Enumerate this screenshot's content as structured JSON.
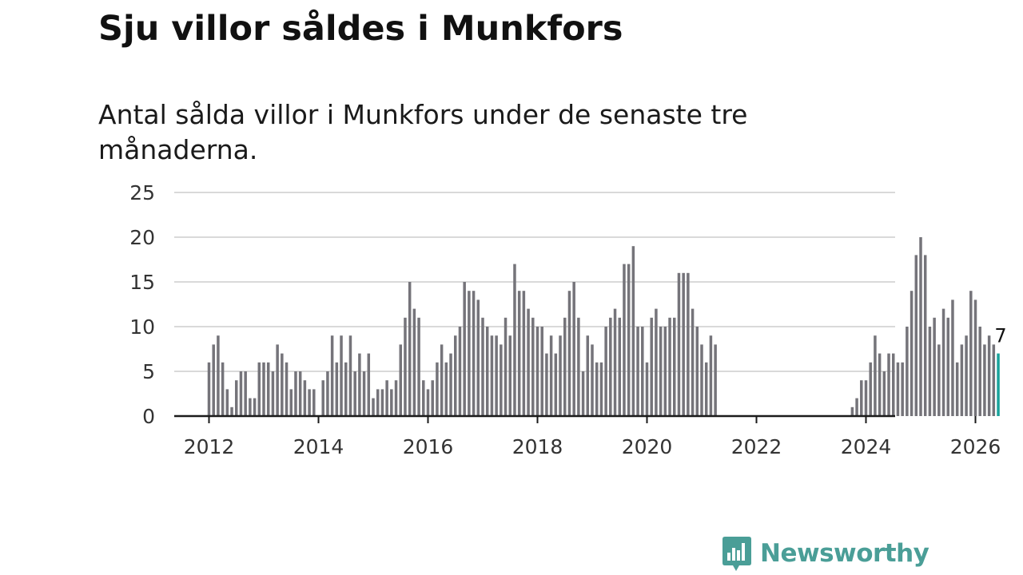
{
  "title": "Sju villor såldes i Munkfors",
  "subtitle": "Antal sålda villor i Munkfors under de senaste tre månaderna.",
  "logo": {
    "name": "Newsworthy",
    "icon": "newsworthy-bar-chart-bubble-icon"
  },
  "colors": {
    "bar": "#75747a",
    "highlight": "#1aa39b",
    "grid": "#d9d9d9",
    "axis": "#1a1a1a",
    "brand": "#4a9e97"
  },
  "chart_data": {
    "type": "bar",
    "title": "Sju villor såldes i Munkfors",
    "subtitle": "Antal sålda villor i Munkfors under de senaste tre månaderna.",
    "xlabel": "",
    "ylabel": "",
    "ylim": [
      0,
      25
    ],
    "yticks": [
      0,
      5,
      10,
      15,
      20,
      25
    ],
    "xticks": [
      "2012",
      "2014",
      "2016",
      "2018",
      "2020",
      "2022",
      "2024",
      "2026"
    ],
    "grid": true,
    "x_start": "2012-01",
    "x_step": "month",
    "values": [
      6,
      8,
      9,
      6,
      3,
      1,
      4,
      5,
      5,
      2,
      2,
      6,
      6,
      6,
      5,
      8,
      7,
      6,
      3,
      5,
      5,
      4,
      3,
      3,
      null,
      4,
      5,
      9,
      6,
      9,
      6,
      9,
      5,
      7,
      5,
      7,
      2,
      3,
      3,
      4,
      3,
      4,
      8,
      11,
      15,
      12,
      11,
      4,
      3,
      4,
      6,
      8,
      6,
      7,
      9,
      10,
      15,
      14,
      14,
      13,
      11,
      10,
      9,
      9,
      8,
      11,
      9,
      17,
      14,
      14,
      12,
      11,
      10,
      10,
      7,
      9,
      7,
      9,
      11,
      14,
      15,
      11,
      5,
      9,
      8,
      6,
      6,
      10,
      11,
      12,
      11,
      17,
      17,
      19,
      10,
      10,
      6,
      11,
      12,
      10,
      10,
      11,
      11,
      16,
      16,
      16,
      12,
      10,
      8,
      6,
      9,
      8,
      null,
      null,
      null,
      null,
      null,
      null,
      null,
      null,
      null,
      null,
      null,
      null,
      null,
      null,
      null,
      null,
      null,
      null,
      null,
      null,
      null,
      null,
      null,
      null,
      null,
      null,
      null,
      null,
      null,
      1,
      2,
      4,
      4,
      6,
      9,
      7,
      5,
      7,
      7,
      6,
      6,
      10,
      14,
      18,
      20,
      18,
      10,
      11,
      8,
      12,
      11,
      13,
      6,
      8,
      9,
      14,
      13,
      10,
      8,
      9,
      8,
      7
    ],
    "highlight_last": true,
    "last_value_label": "7"
  }
}
